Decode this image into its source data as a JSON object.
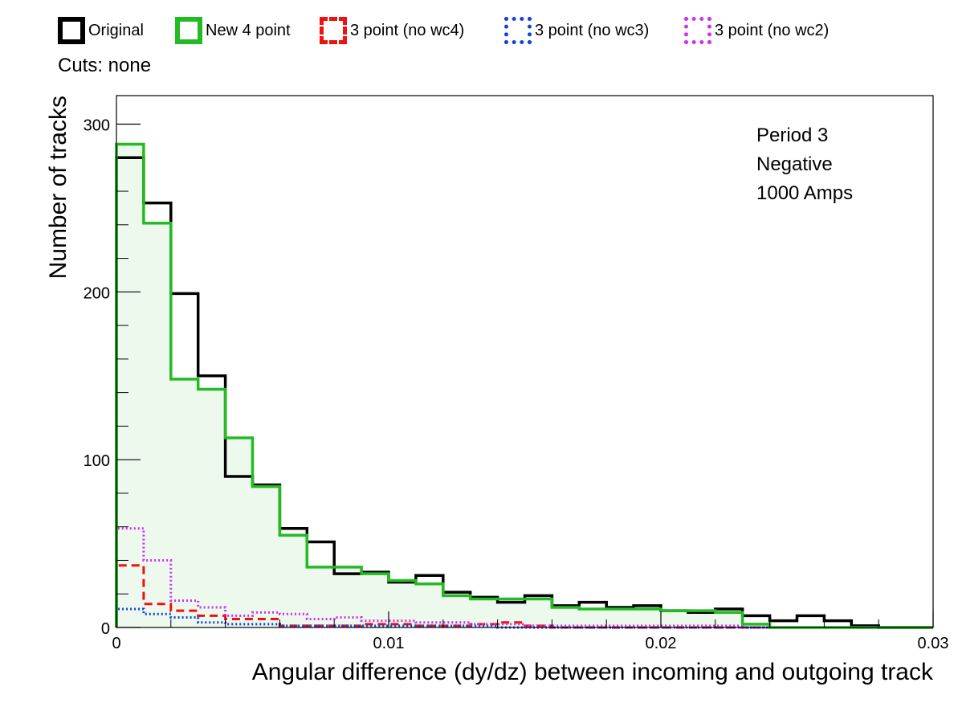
{
  "legend": [
    {
      "label": "Original",
      "color": "#000000",
      "style": "solid"
    },
    {
      "label": "New 4 point",
      "color": "#22bb22",
      "style": "solid"
    },
    {
      "label": "3 point (no wc4)",
      "color": "#ee1111",
      "style": "dashed"
    },
    {
      "label": "3 point (no wc3)",
      "color": "#1144dd",
      "style": "dotted"
    },
    {
      "label": "3 point (no wc2)",
      "color": "#cc33ee",
      "style": "dotted"
    }
  ],
  "cuts_label": "Cuts: none",
  "annotation": [
    "Period 3",
    "Negative",
    "1000 Amps"
  ],
  "chart_data": {
    "type": "histogram",
    "xlabel": "Angular difference (dy/dz) between incoming and outgoing track",
    "ylabel": "Number of tracks",
    "xlim": [
      0,
      0.03
    ],
    "ylim": [
      0,
      317
    ],
    "x_ticks": [
      0,
      0.01,
      0.02,
      0.03
    ],
    "x_tick_labels": [
      "0",
      "0.01",
      "0.02",
      "0.03"
    ],
    "y_ticks": [
      0,
      100,
      200,
      300
    ],
    "y_tick_labels": [
      "0",
      "100",
      "200",
      "300"
    ],
    "bin_edges": [
      0,
      0.001,
      0.002,
      0.003,
      0.004,
      0.005,
      0.006,
      0.007,
      0.008,
      0.009,
      0.01,
      0.011,
      0.012,
      0.013,
      0.014,
      0.015,
      0.016,
      0.017,
      0.018,
      0.019,
      0.02,
      0.021,
      0.022,
      0.023,
      0.024,
      0.025,
      0.026,
      0.027,
      0.028,
      0.029,
      0.03
    ],
    "series": [
      {
        "name": "Original",
        "color": "#000000",
        "width": 3.5,
        "dash": "",
        "values": [
          280,
          253,
          199,
          150,
          90,
          85,
          59,
          51,
          32,
          33,
          27,
          31,
          21,
          18,
          15,
          19,
          13,
          15,
          12,
          13,
          10,
          9,
          11,
          7,
          4,
          7,
          4,
          1,
          0,
          0
        ]
      },
      {
        "name": "New 4 point",
        "color": "#22bb22",
        "width": 3.5,
        "dash": "",
        "fill": "#eef9ee",
        "values": [
          288,
          241,
          148,
          142,
          113,
          84,
          55,
          36,
          36,
          32,
          28,
          26,
          19,
          17,
          17,
          17,
          12,
          11,
          11,
          11,
          10,
          10,
          9,
          2,
          0,
          0,
          0,
          0,
          0,
          0
        ]
      },
      {
        "name": "3 point (no wc4)",
        "color": "#ee1111",
        "width": 3,
        "dash": "10,6",
        "values": [
          37,
          14,
          10,
          7,
          5,
          5,
          1,
          1,
          1,
          2,
          2,
          1,
          1,
          2,
          3,
          1,
          0,
          0,
          0,
          0,
          0,
          0,
          0,
          0,
          0,
          0,
          0,
          0,
          0,
          0
        ]
      },
      {
        "name": "3 point (no wc3)",
        "color": "#1144dd",
        "width": 3,
        "dash": "2,3",
        "values": [
          11,
          8,
          6,
          3,
          2,
          2,
          1,
          1,
          1,
          1,
          1,
          1,
          1,
          1,
          0,
          0,
          0,
          0,
          0,
          0,
          0,
          0,
          0,
          0,
          0,
          0,
          0,
          0,
          0,
          0
        ]
      },
      {
        "name": "3 point (no wc2)",
        "color": "#cc33ee",
        "width": 3,
        "dash": "2,3",
        "values": [
          59,
          40,
          16,
          12,
          7,
          9,
          8,
          5,
          6,
          4,
          4,
          3,
          3,
          2,
          2,
          1,
          1,
          1,
          1,
          1,
          1,
          1,
          1,
          0,
          0,
          0,
          0,
          0,
          0,
          0
        ]
      }
    ]
  }
}
